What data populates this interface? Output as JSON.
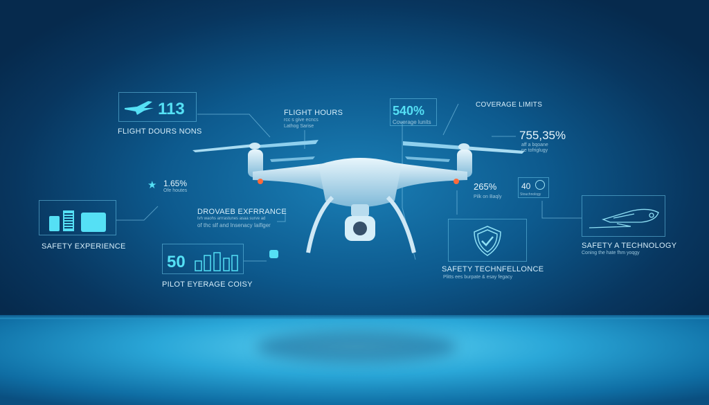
{
  "flight_box": {
    "value": "113",
    "label": "FLIGHT DOURS NONS",
    "icon": "airplane-icon"
  },
  "flight_hours": {
    "title": "FLIGHT HOURS",
    "line1": "rcc s give ecncs",
    "line2": "Lathog Sarise"
  },
  "coverage_box": {
    "value": "540%",
    "label": "Coverage lunits"
  },
  "coverage_limits": {
    "title": "COVERAGE LIMITS"
  },
  "stat_755": {
    "value": "755,35%",
    "line1": "aff a bqoane",
    "line2": "ne tofriglugy"
  },
  "stat_165": {
    "value": "1.65%",
    "label": "Ofe houtes",
    "icon": "star-icon"
  },
  "safety_experience": {
    "label": "SAFETY EXPERIENCE",
    "icons": [
      "battery-icon",
      "battery-icon",
      "briefcase-icon"
    ]
  },
  "drone_experience": {
    "title": "DROVAEB EXFRRANCE",
    "line1": "tvh waohs arrrastunes asaa surve ad",
    "line2": "of thc slf and Insenacy Iaifiger"
  },
  "pilot_box": {
    "value": "50",
    "label": "PILOT EYERAGE COISY",
    "icon": "bar-chart-icon"
  },
  "stat_265": {
    "value": "265%",
    "label": "Pilk on Baqly"
  },
  "stat_40": {
    "value": "40",
    "label": "Stouchnology",
    "icon": "headset-icon"
  },
  "safety_tech_box": {
    "title": "SAFETY TECHNFELLONCE",
    "subtitle": "Plitts ees burpate & esay fegacy",
    "icon": "shield-check-icon"
  },
  "safety_a_tech": {
    "title": "SAFETY A TECHNOLOGY",
    "subtitle": "Coning the hate fhm yoqgy",
    "icon": "jet-icon"
  },
  "colors": {
    "accent": "#55e0f5",
    "background": "#0d5a8e",
    "light": "#ff6a3a"
  }
}
